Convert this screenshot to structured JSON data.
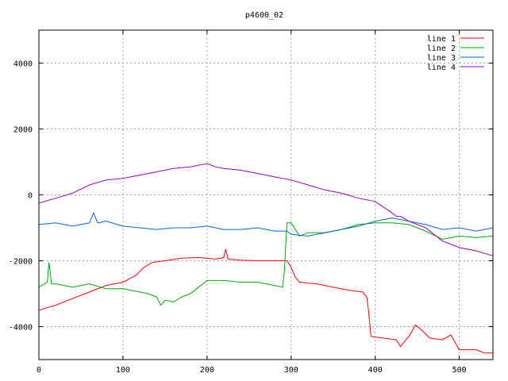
{
  "chart_data": {
    "type": "line",
    "title": "p4600_02",
    "xlabel": "",
    "ylabel": "",
    "xlim": [
      0,
      540
    ],
    "ylim": [
      -5000,
      5000
    ],
    "x_ticks": [
      0,
      100,
      200,
      300,
      400,
      500
    ],
    "y_ticks": [
      -4000,
      -2000,
      0,
      2000,
      4000
    ],
    "grid": true,
    "legend_position": "top-right",
    "series": [
      {
        "name": "line 1",
        "color": "#ff0000",
        "x": [
          0,
          20,
          40,
          60,
          80,
          100,
          115,
          125,
          135,
          150,
          170,
          190,
          210,
          220,
          222,
          225,
          240,
          260,
          280,
          295,
          300,
          305,
          310,
          330,
          350,
          370,
          385,
          390,
          392,
          395,
          410,
          425,
          430,
          440,
          448,
          455,
          465,
          480,
          490,
          500,
          510,
          520,
          530,
          540
        ],
        "y": [
          -3500,
          -3350,
          -3150,
          -2950,
          -2750,
          -2650,
          -2450,
          -2200,
          -2050,
          -2000,
          -1920,
          -1900,
          -1950,
          -1900,
          -1650,
          -1950,
          -1980,
          -2000,
          -2000,
          -2000,
          -2200,
          -2500,
          -2650,
          -2700,
          -2800,
          -2900,
          -2950,
          -3100,
          -3500,
          -4300,
          -4350,
          -4400,
          -4600,
          -4300,
          -3950,
          -4100,
          -4350,
          -4400,
          -4250,
          -4700,
          -4700,
          -4700,
          -4800,
          -4800
        ]
      },
      {
        "name": "line 2",
        "color": "#00aa00",
        "x": [
          0,
          10,
          12,
          15,
          20,
          40,
          60,
          80,
          100,
          120,
          130,
          140,
          145,
          150,
          160,
          170,
          180,
          190,
          200,
          220,
          240,
          260,
          280,
          290,
          292,
          295,
          300,
          310,
          320,
          340,
          360,
          380,
          400,
          420,
          440,
          460,
          480,
          500,
          520,
          540
        ],
        "y": [
          -2800,
          -2650,
          -2050,
          -2700,
          -2700,
          -2800,
          -2700,
          -2850,
          -2850,
          -2950,
          -3000,
          -3100,
          -3350,
          -3200,
          -3250,
          -3100,
          -3000,
          -2800,
          -2600,
          -2600,
          -2650,
          -2650,
          -2750,
          -2800,
          -2300,
          -850,
          -850,
          -1250,
          -1150,
          -1150,
          -1050,
          -900,
          -850,
          -850,
          -900,
          -1100,
          -1350,
          -1250,
          -1300,
          -1250
        ]
      },
      {
        "name": "line 3",
        "color": "#0066dd",
        "x": [
          0,
          20,
          40,
          60,
          65,
          70,
          80,
          100,
          120,
          140,
          160,
          180,
          200,
          220,
          240,
          260,
          280,
          295,
          300,
          320,
          340,
          360,
          380,
          400,
          410,
          420,
          440,
          460,
          480,
          500,
          520,
          540
        ],
        "y": [
          -900,
          -850,
          -950,
          -850,
          -550,
          -850,
          -800,
          -950,
          -1000,
          -1050,
          -1000,
          -1000,
          -950,
          -1050,
          -1050,
          -1000,
          -1100,
          -1100,
          -1200,
          -1250,
          -1150,
          -1050,
          -950,
          -800,
          -750,
          -700,
          -800,
          -900,
          -1050,
          -1000,
          -1100,
          -1000
        ]
      },
      {
        "name": "line 4",
        "color": "#9900cc",
        "x": [
          0,
          20,
          40,
          60,
          80,
          100,
          120,
          140,
          160,
          180,
          200,
          210,
          220,
          240,
          260,
          280,
          300,
          320,
          340,
          360,
          380,
          400,
          420,
          425,
          430,
          440,
          460,
          480,
          500,
          520,
          540
        ],
        "y": [
          -250,
          -100,
          50,
          300,
          450,
          500,
          600,
          700,
          800,
          850,
          950,
          850,
          800,
          750,
          650,
          550,
          450,
          300,
          150,
          50,
          -100,
          -200,
          -550,
          -650,
          -650,
          -800,
          -1000,
          -1400,
          -1600,
          -1700,
          -1850
        ]
      }
    ]
  }
}
